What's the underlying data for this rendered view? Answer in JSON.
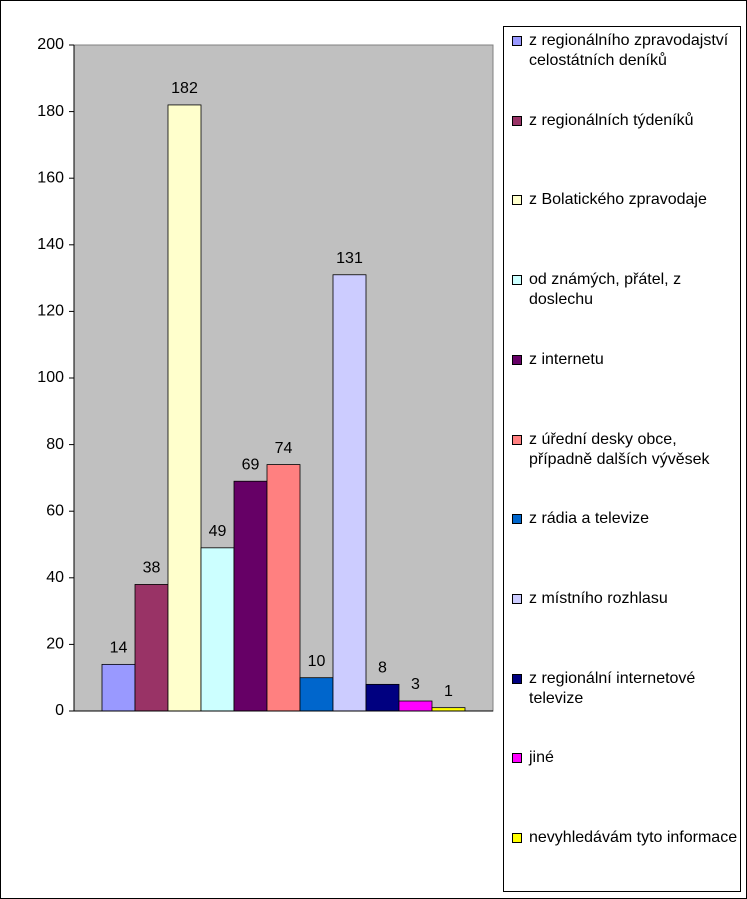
{
  "chart_data": {
    "type": "bar",
    "series": [
      {
        "name": "z regionálního zpravodajství celostátních deníků",
        "color": "#9999ff",
        "values": [
          14
        ]
      },
      {
        "name": "z regionálních týdeníků",
        "color": "#993366",
        "values": [
          38
        ]
      },
      {
        "name": "z Bolatického zpravodaje",
        "color": "#ffffcc",
        "values": [
          182
        ]
      },
      {
        "name": "od známých, přátel, z doslechu",
        "color": "#ccffff",
        "values": [
          49
        ]
      },
      {
        "name": "z internetu",
        "color": "#660066",
        "values": [
          69
        ]
      },
      {
        "name": "z úřední desky obce, případně dalších vývěsek",
        "color": "#ff8080",
        "values": [
          74
        ]
      },
      {
        "name": "z rádia a televize",
        "color": "#0066cc",
        "values": [
          10
        ]
      },
      {
        "name": "z místního rozhlasu",
        "color": "#ccccff",
        "values": [
          131
        ]
      },
      {
        "name": "z regionální internetové televize",
        "color": "#000080",
        "values": [
          8
        ]
      },
      {
        "name": "jiné",
        "color": "#ff00ff",
        "values": [
          3
        ]
      },
      {
        "name": "nevyhledávám tyto informace",
        "color": "#ffff00",
        "values": [
          1
        ]
      }
    ],
    "ylim": [
      0,
      200
    ],
    "yticks": [
      0,
      20,
      40,
      60,
      80,
      100,
      120,
      140,
      160,
      180,
      200
    ],
    "grid": false,
    "legend": "right"
  }
}
